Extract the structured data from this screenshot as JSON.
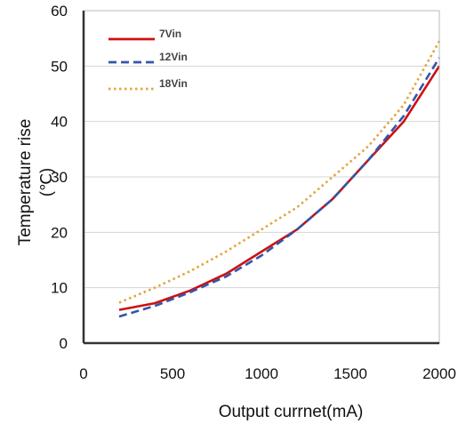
{
  "chart_data": {
    "type": "line",
    "title": "",
    "xlabel": "Output currnet(mA)",
    "ylabel": "Temperature rise",
    "ylabel_unit": "(℃)",
    "xlim": [
      0,
      2000
    ],
    "ylim": [
      0,
      60
    ],
    "xticks": [
      "0",
      "500",
      "1000",
      "1500",
      "2000"
    ],
    "yticks": [
      "0",
      "10",
      "20",
      "30",
      "40",
      "50",
      "60"
    ],
    "grid": true,
    "legend_position": "top-left",
    "series": [
      {
        "name": "7Vin",
        "color": "#cc1111",
        "style": "solid",
        "x": [
          200,
          400,
          600,
          800,
          1000,
          1200,
          1400,
          1600,
          1800,
          2000
        ],
        "y": [
          6,
          7.2,
          9.5,
          12.5,
          16.5,
          20.5,
          26,
          33,
          40,
          50
        ]
      },
      {
        "name": "12Vin",
        "color": "#3355aa",
        "style": "dashed",
        "x": [
          200,
          400,
          600,
          800,
          1000,
          1200,
          1400,
          1600,
          1800,
          2000
        ],
        "y": [
          4.8,
          6.7,
          9.2,
          12,
          15.8,
          20.5,
          26,
          33,
          41,
          51.5
        ]
      },
      {
        "name": "18Vin",
        "color": "#e0a63c",
        "style": "dotted",
        "x": [
          200,
          400,
          600,
          800,
          1000,
          1200,
          1400,
          1600,
          1800,
          2000
        ],
        "y": [
          7.3,
          10,
          13,
          16.5,
          20.5,
          24.5,
          30,
          35.5,
          43,
          54.5
        ]
      }
    ]
  }
}
